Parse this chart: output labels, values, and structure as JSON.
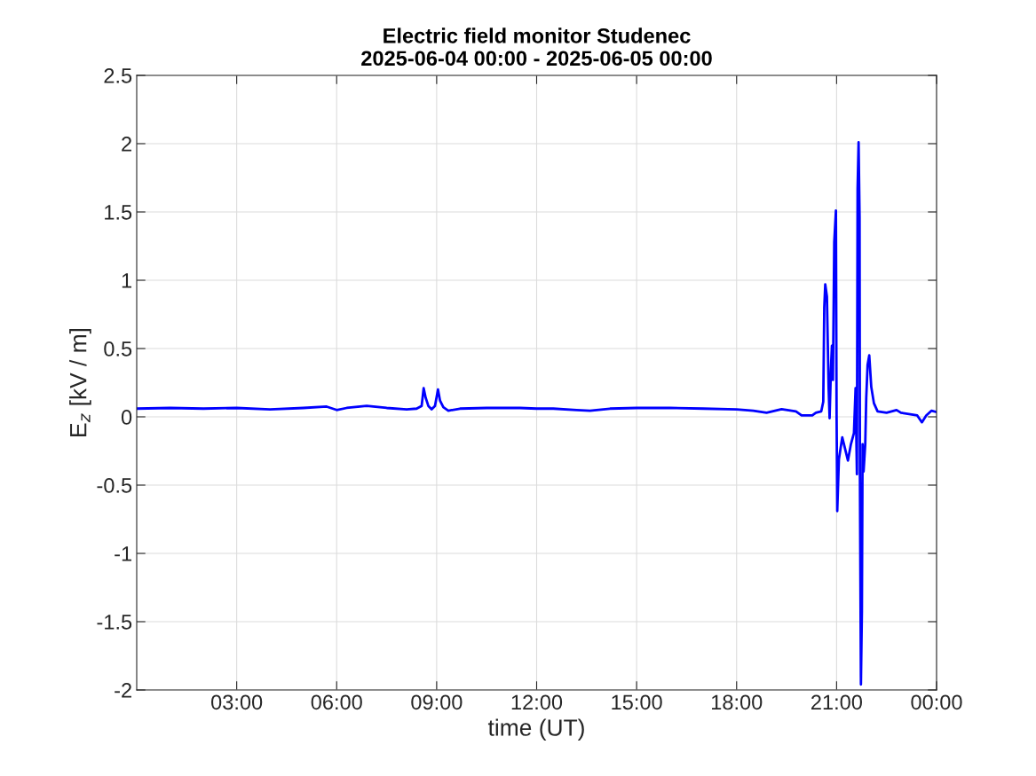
{
  "chart_data": {
    "type": "line",
    "title": "Electric field monitor Studenec\n2025-06-04 00:00 - 2025-06-05 00:00",
    "xlabel": "time (UT)",
    "ylabel": "E$_{z}$ [kV / m]",
    "series": [
      {
        "color": "#0000ff",
        "x": [
          0,
          1,
          2,
          3,
          4,
          5,
          5.7,
          6.0,
          6.3,
          6.9,
          7.5,
          8.1,
          8.4,
          8.55,
          8.61,
          8.67,
          8.75,
          8.85,
          8.95,
          9.04,
          9.1,
          9.2,
          9.35,
          9.7,
          10.5,
          11.5,
          12.0,
          12.5,
          13.2,
          13.6,
          14.2,
          15.0,
          16.0,
          17.0,
          18.0,
          18.5,
          18.9,
          19.35,
          19.78,
          19.95,
          20.27,
          20.38,
          20.54,
          20.6,
          20.63,
          20.66,
          20.71,
          20.74,
          20.76,
          20.79,
          20.83,
          20.86,
          20.89,
          20.93,
          20.98,
          21.0,
          21.02,
          21.07,
          21.17,
          21.25,
          21.34,
          21.43,
          21.52,
          21.57,
          21.61,
          21.63,
          21.66,
          21.69,
          21.7,
          21.73,
          21.76,
          21.78,
          21.81,
          21.86,
          21.89,
          21.93,
          21.98,
          22.04,
          22.12,
          22.23,
          22.5,
          22.8,
          22.93,
          23.42,
          23.56,
          23.69,
          23.85,
          24.0
        ],
        "values": [
          0.06,
          0.065,
          0.06,
          0.065,
          0.055,
          0.065,
          0.075,
          0.05,
          0.065,
          0.08,
          0.065,
          0.055,
          0.06,
          0.08,
          0.21,
          0.14,
          0.08,
          0.055,
          0.08,
          0.2,
          0.12,
          0.07,
          0.045,
          0.06,
          0.065,
          0.065,
          0.06,
          0.06,
          0.05,
          0.045,
          0.06,
          0.065,
          0.065,
          0.06,
          0.055,
          0.045,
          0.03,
          0.056,
          0.04,
          0.01,
          0.01,
          0.03,
          0.04,
          0.11,
          0.8,
          0.97,
          0.88,
          0.48,
          0.22,
          -0.01,
          0.35,
          0.52,
          0.27,
          1.28,
          1.51,
          0.01,
          -0.69,
          -0.31,
          -0.15,
          -0.23,
          -0.32,
          -0.2,
          -0.12,
          0.21,
          -0.42,
          1.67,
          2.01,
          1.46,
          -0.44,
          -1.96,
          -1.42,
          -0.2,
          -0.4,
          -0.2,
          0.14,
          0.38,
          0.45,
          0.22,
          0.1,
          0.04,
          0.03,
          0.05,
          0.03,
          0.01,
          -0.04,
          0.01,
          0.045,
          0.035
        ]
      }
    ],
    "xlim": [
      0,
      24
    ],
    "xticks": [
      {
        "value": 3,
        "label": "03:00"
      },
      {
        "value": 6,
        "label": "06:00"
      },
      {
        "value": 9,
        "label": "09:00"
      },
      {
        "value": 12,
        "label": "12:00"
      },
      {
        "value": 15,
        "label": "15:00"
      },
      {
        "value": 18,
        "label": "18:00"
      },
      {
        "value": 21,
        "label": "21:00"
      },
      {
        "value": 24,
        "label": "00:00"
      }
    ],
    "ylim": [
      -2,
      2.5
    ],
    "yticks": [
      -2,
      -1.5,
      -1,
      -0.5,
      0,
      0.5,
      1,
      1.5,
      2,
      2.5
    ],
    "grid": true,
    "marker": "none",
    "line_style": "solid"
  }
}
